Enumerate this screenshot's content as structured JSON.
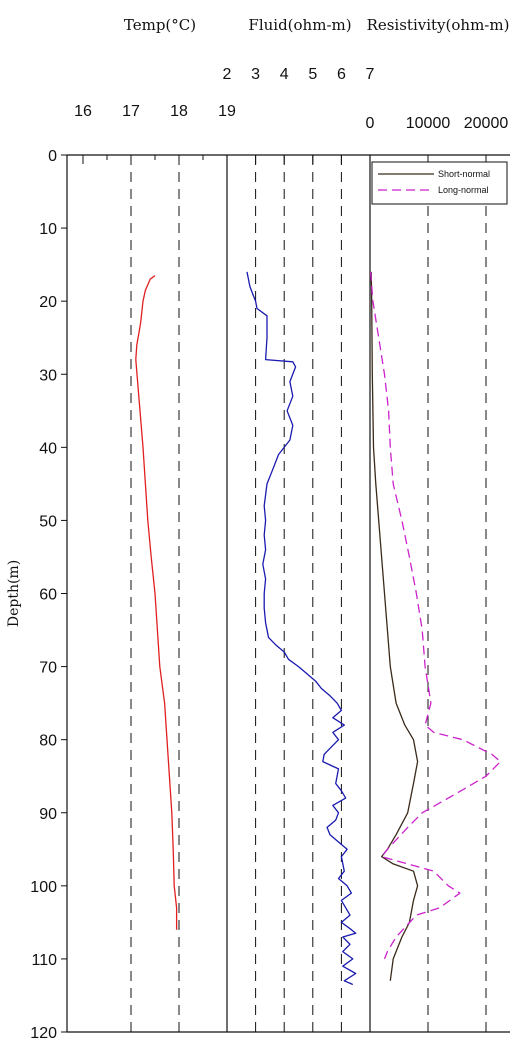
{
  "chart_data": {
    "type": "line",
    "y_axis": {
      "label": "Depth(m)",
      "ticks": [
        "0",
        "10",
        "20",
        "30",
        "40",
        "50",
        "60",
        "70",
        "80",
        "90",
        "100",
        "110",
        "120"
      ],
      "range": [
        0,
        120
      ],
      "inverted": true
    },
    "tracks": [
      {
        "title": "Temp(°C)",
        "range": [
          16,
          19
        ],
        "ticks": [
          "16",
          "17",
          "18",
          "19"
        ],
        "grid": "dashed",
        "series": [
          {
            "color": "#e02020",
            "dash": "solid",
            "points": [
              [
                17.5,
                16.5
              ],
              [
                17.4,
                17
              ],
              [
                17.3,
                18.5
              ],
              [
                17.25,
                20
              ],
              [
                17.2,
                23
              ],
              [
                17.12,
                26
              ],
              [
                17.1,
                28
              ],
              [
                17.15,
                32
              ],
              [
                17.2,
                36
              ],
              [
                17.25,
                40
              ],
              [
                17.3,
                45
              ],
              [
                17.35,
                50
              ],
              [
                17.42,
                55
              ],
              [
                17.5,
                60
              ],
              [
                17.55,
                65
              ],
              [
                17.6,
                70
              ],
              [
                17.7,
                75
              ],
              [
                17.75,
                80
              ],
              [
                17.8,
                85
              ],
              [
                17.85,
                90
              ],
              [
                17.88,
                95
              ],
              [
                17.9,
                100
              ],
              [
                17.95,
                103
              ],
              [
                17.95,
                106
              ]
            ]
          }
        ]
      },
      {
        "title": "Fluid(ohm-m)",
        "range": [
          2,
          7
        ],
        "ticks": [
          "2",
          "3",
          "4",
          "5",
          "6",
          "7"
        ],
        "grid": "dashed",
        "series": [
          {
            "color": "#1a1ab0",
            "dash": "solid",
            "points": [
              [
                2.7,
                16
              ],
              [
                2.8,
                18
              ],
              [
                2.9,
                19
              ],
              [
                3.0,
                20
              ],
              [
                3.05,
                21
              ],
              [
                3.4,
                22
              ],
              [
                3.4,
                25
              ],
              [
                3.35,
                28
              ],
              [
                4.3,
                28.3
              ],
              [
                4.4,
                29
              ],
              [
                4.2,
                31
              ],
              [
                4.3,
                33
              ],
              [
                4.1,
                35
              ],
              [
                4.3,
                37
              ],
              [
                4.2,
                39
              ],
              [
                3.8,
                41
              ],
              [
                3.6,
                43
              ],
              [
                3.4,
                45
              ],
              [
                3.3,
                48
              ],
              [
                3.35,
                50
              ],
              [
                3.3,
                52
              ],
              [
                3.35,
                54
              ],
              [
                3.25,
                56
              ],
              [
                3.35,
                58
              ],
              [
                3.3,
                60
              ],
              [
                3.3,
                62
              ],
              [
                3.35,
                64
              ],
              [
                3.45,
                66
              ],
              [
                3.7,
                67
              ],
              [
                4.0,
                68
              ],
              [
                4.15,
                69
              ],
              [
                4.5,
                70
              ],
              [
                4.8,
                71
              ],
              [
                5.1,
                72
              ],
              [
                5.3,
                73
              ],
              [
                5.6,
                74
              ],
              [
                5.85,
                75
              ],
              [
                6.0,
                76
              ],
              [
                5.7,
                77
              ],
              [
                6.1,
                78
              ],
              [
                5.7,
                79
              ],
              [
                5.9,
                80
              ],
              [
                5.4,
                82
              ],
              [
                5.35,
                83
              ],
              [
                5.9,
                84
              ],
              [
                5.8,
                86
              ],
              [
                6.0,
                87
              ],
              [
                6.15,
                88
              ],
              [
                5.7,
                89
              ],
              [
                5.9,
                90
              ],
              [
                5.8,
                91
              ],
              [
                5.5,
                92
              ],
              [
                5.6,
                93
              ],
              [
                5.9,
                94
              ],
              [
                6.2,
                95
              ],
              [
                6.0,
                96
              ],
              [
                6.1,
                98
              ],
              [
                5.9,
                99
              ],
              [
                6.2,
                100
              ],
              [
                6.35,
                101
              ],
              [
                6.0,
                102
              ],
              [
                6.3,
                104
              ],
              [
                6.0,
                105
              ],
              [
                6.35,
                106
              ],
              [
                6.5,
                106.5
              ],
              [
                6.05,
                107
              ],
              [
                6.3,
                108
              ],
              [
                6.05,
                109
              ],
              [
                6.4,
                110
              ],
              [
                6.05,
                111
              ],
              [
                6.5,
                112
              ],
              [
                6.1,
                113
              ],
              [
                6.4,
                113.5
              ]
            ]
          }
        ]
      },
      {
        "title": "Resistivity(ohm-m)",
        "range": [
          0,
          25000
        ],
        "ticks": [
          "0",
          "10000",
          "20000"
        ],
        "grid": "dashed",
        "legend": {
          "position": "top-right",
          "entries": [
            "Short-normal",
            "Long-normal"
          ]
        },
        "series": [
          {
            "name": "Short-normal",
            "color": "#3a2a1a",
            "dash": "solid",
            "points": [
              [
                200,
                16
              ],
              [
                300,
                20
              ],
              [
                400,
                30
              ],
              [
                600,
                40
              ],
              [
                1000,
                45
              ],
              [
                1500,
                50
              ],
              [
                2000,
                55
              ],
              [
                2500,
                60
              ],
              [
                3000,
                65
              ],
              [
                3500,
                70
              ],
              [
                4500,
                75
              ],
              [
                6000,
                78
              ],
              [
                7500,
                80
              ],
              [
                8200,
                83
              ],
              [
                7500,
                86
              ],
              [
                6500,
                90
              ],
              [
                4500,
                93
              ],
              [
                3000,
                95
              ],
              [
                2000,
                96
              ],
              [
                4000,
                97
              ],
              [
                7500,
                98
              ],
              [
                8200,
                100
              ],
              [
                7500,
                102
              ],
              [
                6800,
                105
              ],
              [
                5500,
                107
              ],
              [
                4000,
                110
              ],
              [
                3500,
                113
              ]
            ]
          },
          {
            "name": "Long-normal",
            "color": "#cc22cc",
            "dash": "dashed",
            "points": [
              [
                100,
                16
              ],
              [
                500,
                20
              ],
              [
                1500,
                25
              ],
              [
                2500,
                30
              ],
              [
                3200,
                35
              ],
              [
                3500,
                40
              ],
              [
                4000,
                45
              ],
              [
                5500,
                50
              ],
              [
                6800,
                55
              ],
              [
                8000,
                60
              ],
              [
                9000,
                65
              ],
              [
                9500,
                70
              ],
              [
                10500,
                75
              ],
              [
                9500,
                78
              ],
              [
                11000,
                79
              ],
              [
                16000,
                80
              ],
              [
                21000,
                82
              ],
              [
                22500,
                83
              ],
              [
                20000,
                85
              ],
              [
                13500,
                88
              ],
              [
                9000,
                90
              ],
              [
                6500,
                92
              ],
              [
                3000,
                95
              ],
              [
                2000,
                96
              ],
              [
                6500,
                97
              ],
              [
                11000,
                98
              ],
              [
                13500,
                100
              ],
              [
                15500,
                101
              ],
              [
                12000,
                103
              ],
              [
                8000,
                104
              ],
              [
                4500,
                107
              ],
              [
                3000,
                109
              ],
              [
                2500,
                110
              ]
            ]
          }
        ]
      }
    ]
  }
}
